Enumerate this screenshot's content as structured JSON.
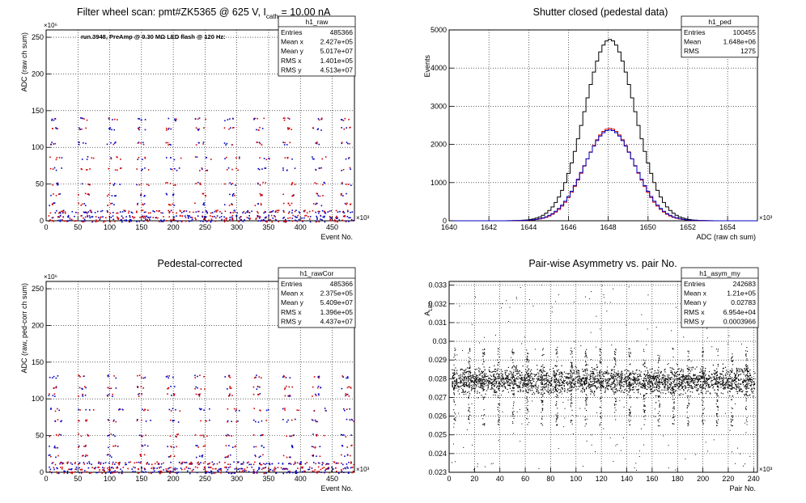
{
  "panels": [
    {
      "id": "raw",
      "title": "Filter wheel scan: pmt#ZK5365 @   625 V, I",
      "title_sub": "cath",
      "title_tail": " = 10.00 nA",
      "annotation": "run.3948, PreAmp @ 0.30 MΩ LED flash @  120 Hz:",
      "ylabel": "ADC (raw ch sum)",
      "xlabel": "Event No.",
      "y_exponent": "×10⁶",
      "x_exponent": "×10³",
      "stats": {
        "name": "h1_raw",
        "rows": [
          [
            "Entries",
            "485366"
          ],
          [
            "Mean x",
            "2.427e+05"
          ],
          [
            "Mean y",
            "5.017e+07"
          ],
          [
            "RMS x",
            "1.401e+05"
          ],
          [
            "RMS y",
            "4.513e+07"
          ]
        ]
      }
    },
    {
      "id": "ped",
      "title": "Shutter closed (pedestal data)",
      "ylabel": "Events",
      "xlabel": "ADC (raw ch sum)",
      "x_exponent": "×10³",
      "stats": {
        "name": "h1_ped",
        "rows": [
          [
            "Entries",
            "100455"
          ],
          [
            "Mean",
            "1.648e+06"
          ],
          [
            "RMS",
            "1275"
          ]
        ]
      }
    },
    {
      "id": "cor",
      "title": "Pedestal-corrected",
      "ylabel": "ADC (raw, ped-corr ch sum)",
      "xlabel": "Event No.",
      "y_exponent": "×10⁶",
      "x_exponent": "×10³",
      "stats": {
        "name": "h1_rawCor",
        "rows": [
          [
            "Entries",
            "485366"
          ],
          [
            "Mean x",
            "2.375e+05"
          ],
          [
            "Mean y",
            "5.409e+07"
          ],
          [
            "RMS x",
            "1.396e+05"
          ],
          [
            "RMS y",
            "4.437e+07"
          ]
        ]
      }
    },
    {
      "id": "asym",
      "title": "Pair-wise Asymmetry vs. pair No.",
      "ylabel": "A",
      "ylabel_sub": "LED",
      "xlabel": "Pair No.",
      "x_exponent": "×10³",
      "stats": {
        "name": "h1_asym_my",
        "rows": [
          [
            "Entries",
            "242683"
          ],
          [
            "Mean x",
            "1.21e+05"
          ],
          [
            "Mean y",
            "0.02783"
          ],
          [
            "RMS x",
            "6.954e+04"
          ],
          [
            "RMS y",
            "0.0003966"
          ]
        ]
      }
    }
  ],
  "chart_data": [
    {
      "type": "scatter",
      "title": "Filter wheel scan: pmt#ZK5365 @   625 V, I_cath = 10.00 nA",
      "xlabel": "Event No.",
      "ylabel": "ADC (raw ch sum)",
      "xlim": [
        0,
        485
      ],
      "ylim": [
        0,
        260
      ],
      "x_ticks": [
        "0",
        "50",
        "100",
        "150",
        "200",
        "250",
        "300",
        "350",
        "400",
        "450"
      ],
      "y_ticks": [
        "0",
        "50",
        "100",
        "150",
        "200",
        "250"
      ],
      "cycle_period": 46,
      "cycle_start": 3,
      "levels": [
        0,
        5,
        12,
        22,
        35,
        50,
        70,
        85,
        105,
        125,
        138
      ],
      "colors": [
        "#d00000",
        "#0000c0"
      ],
      "grid": true,
      "legend": "top-right"
    },
    {
      "type": "line",
      "title": "Shutter closed (pedestal data)",
      "xlabel": "ADC (raw ch sum)",
      "ylabel": "Events",
      "xlim": [
        1640,
        1655.5
      ],
      "ylim": [
        0,
        5000
      ],
      "x_ticks": [
        "1640",
        "1642",
        "1644",
        "1646",
        "1648",
        "1650",
        "1652",
        "1654"
      ],
      "y_ticks": [
        "0",
        "1000",
        "2000",
        "3000",
        "4000",
        "5000"
      ],
      "series": [
        {
          "color": "#000000",
          "peak_x": 1648.0,
          "peak_y": 4750,
          "sigma": 1.27
        },
        {
          "color": "#d00000",
          "peak_x": 1648.0,
          "peak_y": 2420,
          "sigma": 1.25
        },
        {
          "color": "#0000c0",
          "peak_x": 1648.0,
          "peak_y": 2380,
          "sigma": 1.28
        }
      ],
      "grid": true,
      "legend": "top-right"
    },
    {
      "type": "scatter",
      "title": "Pedestal-corrected",
      "xlabel": "Event No.",
      "ylabel": "ADC (raw, ped-corr ch sum)",
      "xlim": [
        0,
        485
      ],
      "ylim": [
        0,
        260
      ],
      "x_ticks": [
        "0",
        "50",
        "100",
        "150",
        "200",
        "250",
        "300",
        "350",
        "400",
        "450"
      ],
      "y_ticks": [
        "0",
        "50",
        "100",
        "150",
        "200",
        "250"
      ],
      "cycle_period": 46,
      "cycle_start": 3,
      "levels": [
        0,
        5,
        12,
        22,
        35,
        50,
        70,
        85,
        105,
        115,
        130
      ],
      "colors": [
        "#d00000",
        "#0000c0"
      ],
      "grid": true,
      "legend": "top-right"
    },
    {
      "type": "scatter",
      "title": "Pair-wise Asymmetry vs. pair No.",
      "xlabel": "Pair No.",
      "ylabel": "A_LED",
      "xlim": [
        0,
        243
      ],
      "ylim": [
        0.023,
        0.0332
      ],
      "x_ticks": [
        "0",
        "20",
        "40",
        "60",
        "80",
        "100",
        "120",
        "140",
        "160",
        "180",
        "200",
        "220",
        "240"
      ],
      "y_ticks": [
        "0.023",
        "0.024",
        "0.025",
        "0.026",
        "0.027",
        "0.028",
        "0.029",
        "0.03",
        "0.031",
        "0.032",
        "0.033"
      ],
      "band_center": 0.0279,
      "band_halfwidth": 0.0006,
      "spike_period": 11.5,
      "spike_start": 4,
      "grid": true,
      "legend": "top-right"
    }
  ]
}
